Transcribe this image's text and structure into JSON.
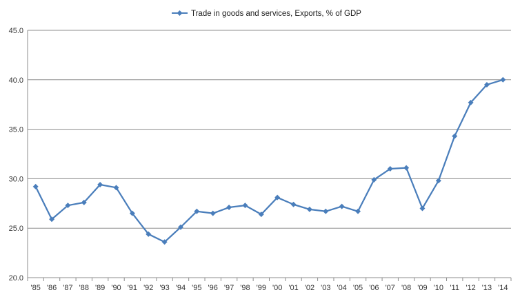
{
  "chart_data": {
    "type": "line",
    "title": "",
    "xlabel": "",
    "ylabel": "",
    "categories": [
      "'85",
      "'86",
      "'87",
      "'88",
      "'89",
      "'90",
      "'91",
      "'92",
      "'93",
      "'94",
      "'95",
      "'96",
      "'97",
      "'98",
      "'99",
      "'00",
      "'01",
      "'02",
      "'03",
      "'04",
      "'05",
      "'06",
      "'07",
      "'08",
      "'09",
      "'10",
      "'11",
      "'12",
      "'13",
      "'14"
    ],
    "series": [
      {
        "name": "Trade in goods and services, Exports, % of GDP",
        "color": "#4A7EBB",
        "values": [
          29.2,
          25.9,
          27.3,
          27.6,
          29.4,
          29.1,
          26.5,
          24.4,
          23.6,
          25.1,
          26.7,
          26.5,
          27.1,
          27.3,
          26.4,
          28.1,
          27.4,
          26.9,
          26.7,
          27.2,
          26.7,
          29.9,
          31.0,
          31.1,
          27.0,
          29.8,
          34.3,
          37.7,
          39.5,
          40.0
        ]
      }
    ],
    "ylim": [
      20,
      45
    ],
    "yticks": [
      "20.0",
      "25.0",
      "30.0",
      "35.0",
      "40.0",
      "45.0"
    ],
    "ytick_values": [
      20,
      25,
      30,
      35,
      40,
      45
    ],
    "grid": true,
    "legend_position": "top-center",
    "marker": "diamond"
  }
}
